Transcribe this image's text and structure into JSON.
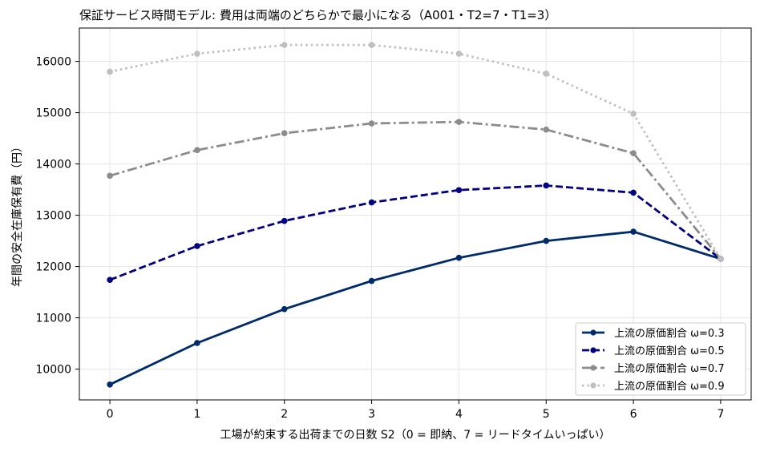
{
  "chart_data": {
    "type": "line",
    "title": "保証サービス時間モデル: 費用は両端のどちらかで最小になる（A001・T2=7・T1=3）",
    "xlabel": "工場が約束する出荷までの日数 S2（0 = 即納、7 = リードタイムいっぱい）",
    "ylabel": "年間の安全在庫保有費（円）",
    "x": [
      0,
      1,
      2,
      3,
      4,
      5,
      6,
      7
    ],
    "xlim": [
      -0.35,
      7.35
    ],
    "ylim": [
      9400,
      16650
    ],
    "xticks": [
      "0",
      "1",
      "2",
      "3",
      "4",
      "5",
      "6",
      "7"
    ],
    "yticks": [
      10000,
      11000,
      12000,
      13000,
      14000,
      15000,
      16000
    ],
    "grid": true,
    "legend_position": "bottom-right",
    "series": [
      {
        "name": "上流の原価割合 ω=0.3",
        "values": [
          9700,
          10510,
          11170,
          11720,
          12170,
          12500,
          12680,
          12150
        ],
        "color": "#002b6b",
        "dash": "solid"
      },
      {
        "name": "上流の原価割合 ω=0.5",
        "values": [
          11740,
          12400,
          12890,
          13250,
          13490,
          13580,
          13440,
          12150
        ],
        "color": "#000080",
        "dash": "dashed"
      },
      {
        "name": "上流の原価割合 ω=0.7",
        "values": [
          13770,
          14270,
          14600,
          14790,
          14820,
          14670,
          14210,
          12150
        ],
        "color": "#8c8c8c",
        "dash": "dashdot"
      },
      {
        "name": "上流の原価割合 ω=0.9",
        "values": [
          15800,
          16150,
          16320,
          16320,
          16150,
          15760,
          14980,
          12150
        ],
        "color": "#bfbfbf",
        "dash": "dotted"
      }
    ]
  }
}
